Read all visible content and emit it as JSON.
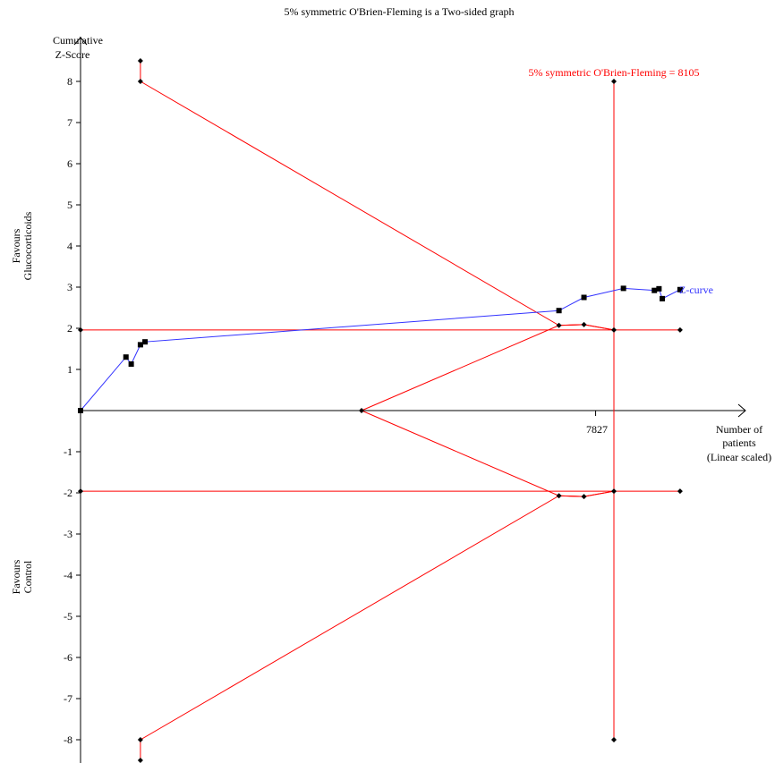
{
  "chart_data": {
    "type": "line",
    "title": "5% symmetric O'Brien-Fleming is a Two-sided graph",
    "ylabel_lines": [
      "Cumulative",
      "Z-Score"
    ],
    "xlabel_lines": [
      "Number of",
      "patients",
      "(Linear scaled)"
    ],
    "favours_top_lines": [
      "Favours",
      "Glucocorticoids"
    ],
    "favours_bottom_lines": [
      "Favours",
      "Control"
    ],
    "ylim": [
      -8.5,
      8.5
    ],
    "y_ticks": [
      -8,
      -7,
      -6,
      -5,
      -4,
      -3,
      -2,
      -1,
      1,
      2,
      3,
      4,
      5,
      6,
      7,
      8
    ],
    "x_tick": {
      "value": 7827,
      "label": "7827"
    },
    "ris": {
      "value": 8105,
      "label": "5% symmetric O'Brien-Fleming = 8105"
    },
    "zcurve_label": "Z-curve",
    "colors": {
      "boundary": "#ff0000",
      "zcurve": "#3333ff",
      "axis": "#000000"
    },
    "conventional_boundary": [
      1.96,
      -1.96
    ],
    "zcurve": [
      {
        "x": 0,
        "y": 0
      },
      {
        "x": 690,
        "y": 1.3
      },
      {
        "x": 770,
        "y": 1.13
      },
      {
        "x": 910,
        "y": 1.6
      },
      {
        "x": 980,
        "y": 1.67
      },
      {
        "x": 7270,
        "y": 2.43
      },
      {
        "x": 7650,
        "y": 2.75
      },
      {
        "x": 8250,
        "y": 2.97
      },
      {
        "x": 8720,
        "y": 2.92
      },
      {
        "x": 8790,
        "y": 2.96
      },
      {
        "x": 8840,
        "y": 2.72
      },
      {
        "x": 9110,
        "y": 2.94
      }
    ],
    "upper_boundary": [
      {
        "x": 910,
        "y": 8.5
      },
      {
        "x": 910,
        "y": 8.0
      },
      {
        "x": 7270,
        "y": 2.07
      },
      {
        "x": 7650,
        "y": 2.09
      },
      {
        "x": 8105,
        "y": 1.96
      }
    ],
    "lower_boundary": [
      {
        "x": 910,
        "y": -8.5
      },
      {
        "x": 910,
        "y": -8.0
      },
      {
        "x": 7270,
        "y": -2.07
      },
      {
        "x": 7650,
        "y": -2.09
      },
      {
        "x": 8105,
        "y": -1.96
      }
    ],
    "futility_upper": [
      {
        "x": 4270,
        "y": 0
      },
      {
        "x": 7270,
        "y": 2.07
      },
      {
        "x": 7650,
        "y": 2.09
      },
      {
        "x": 8105,
        "y": 1.96
      }
    ],
    "futility_lower": [
      {
        "x": 4270,
        "y": 0
      },
      {
        "x": 7270,
        "y": -2.07
      },
      {
        "x": 7650,
        "y": -2.09
      },
      {
        "x": 8105,
        "y": -1.96
      }
    ],
    "ris_line": {
      "x": 8105,
      "y_top": 8.0,
      "y_bottom": -8.0
    },
    "conventional_x_range": [
      0,
      9110
    ]
  }
}
